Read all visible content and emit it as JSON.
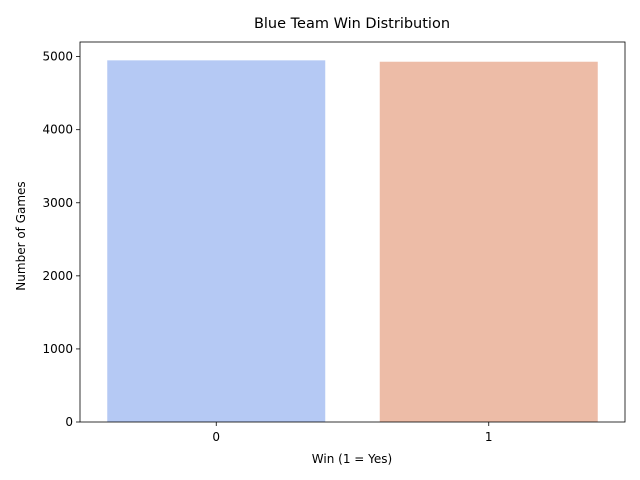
{
  "chart_data": {
    "type": "bar",
    "title": "Blue Team Win Distribution",
    "xlabel": "Win (1 = Yes)",
    "ylabel": "Number of Games",
    "categories": [
      "0",
      "1"
    ],
    "values": [
      4949,
      4930
    ],
    "colors": [
      "#b5c9f4",
      "#edbca7"
    ],
    "ylim": [
      0,
      5200
    ],
    "yticks": [
      0,
      1000,
      2000,
      3000,
      4000,
      5000
    ],
    "grid": false,
    "legend": "none"
  }
}
